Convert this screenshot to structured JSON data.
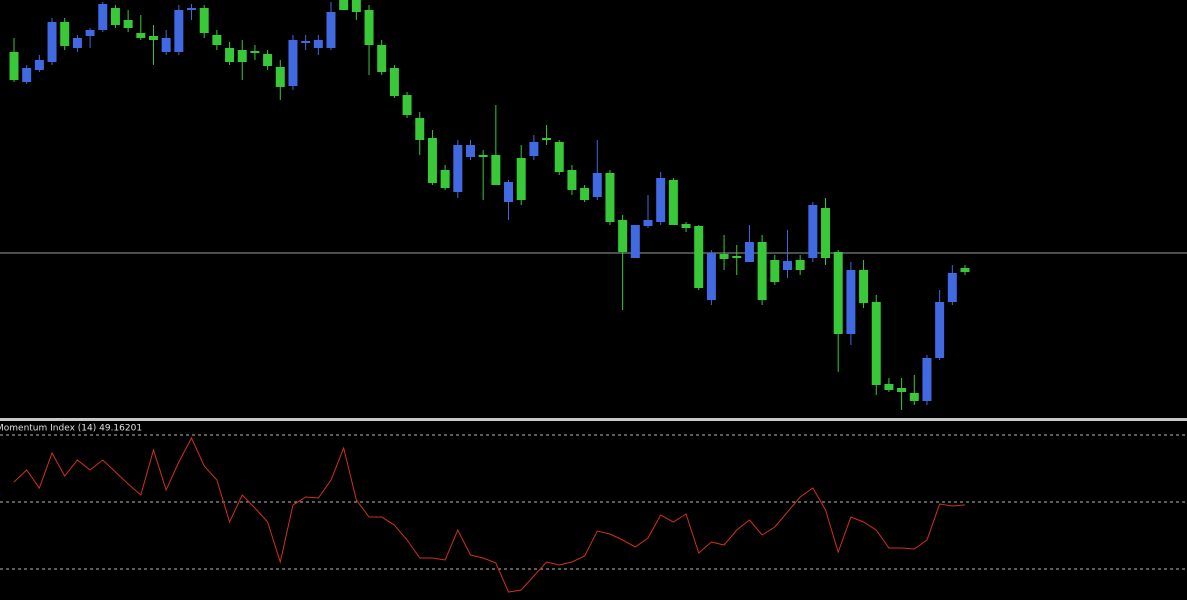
{
  "chart_data": [
    {
      "type": "candlestick",
      "up_color": "#4169e1",
      "down_color": "#38c838",
      "ylim": [
        0,
        420
      ],
      "hline": 167,
      "hline_color": "#8fa0a0",
      "open": [
        368,
        338,
        350,
        358,
        398,
        372,
        384,
        390,
        412,
        400,
        387,
        384,
        368,
        368,
        410,
        412,
        385,
        372,
        370,
        369,
        366,
        353,
        334,
        377,
        372,
        372,
        420,
        420,
        410,
        375,
        352,
        325,
        302,
        282,
        250,
        228,
        263,
        265,
        265,
        218,
        262,
        264,
        282,
        278,
        250,
        232,
        223,
        247,
        200,
        162,
        194,
        198,
        240,
        196,
        194,
        120,
        166,
        164,
        158,
        178,
        160,
        150,
        160,
        162,
        212,
        168,
        86,
        150,
        118,
        36,
        32,
        27,
        19,
        62,
        118,
        152
      ],
      "high": [
        382,
        355,
        365,
        402,
        402,
        385,
        392,
        418,
        415,
        410,
        405,
        395,
        390,
        415,
        416,
        415,
        390,
        378,
        380,
        375,
        370,
        360,
        385,
        385,
        385,
        418,
        420,
        420,
        415,
        380,
        355,
        328,
        308,
        290,
        255,
        280,
        280,
        270,
        315,
        240,
        275,
        285,
        295,
        280,
        255,
        235,
        280,
        250,
        205,
        195,
        225,
        248,
        242,
        198,
        195,
        170,
        185,
        175,
        195,
        185,
        165,
        190,
        165,
        218,
        222,
        170,
        158,
        160,
        125,
        42,
        42,
        45,
        65,
        130,
        155,
        155
      ],
      "low": [
        338,
        336,
        348,
        355,
        370,
        368,
        372,
        388,
        392,
        388,
        380,
        355,
        365,
        365,
        400,
        382,
        370,
        355,
        340,
        360,
        350,
        320,
        330,
        370,
        365,
        370,
        410,
        400,
        345,
        345,
        322,
        302,
        265,
        235,
        230,
        222,
        260,
        220,
        235,
        200,
        215,
        260,
        275,
        245,
        225,
        218,
        220,
        195,
        110,
        162,
        192,
        195,
        195,
        188,
        130,
        115,
        150,
        145,
        158,
        115,
        135,
        142,
        145,
        158,
        155,
        48,
        75,
        112,
        25,
        28,
        10,
        15,
        15,
        60,
        115,
        145
      ],
      "close": [
        340,
        352,
        360,
        398,
        374,
        382,
        390,
        416,
        395,
        392,
        382,
        380,
        382,
        410,
        412,
        387,
        375,
        358,
        358,
        367,
        354,
        333,
        380,
        379,
        380,
        408,
        410,
        408,
        375,
        348,
        324,
        305,
        280,
        237,
        232,
        275,
        275,
        263,
        235,
        238,
        220,
        278,
        280,
        248,
        230,
        220,
        247,
        198,
        168,
        195,
        200,
        242,
        195,
        192,
        132,
        167,
        161,
        162,
        178,
        120,
        138,
        159,
        150,
        215,
        162,
        86,
        150,
        117,
        35,
        30,
        28,
        19,
        62,
        118,
        147,
        148
      ]
    },
    {
      "type": "line",
      "title": "Momentum Index (14) 49.16201",
      "color": "#d0301e",
      "ylim": [
        20.75,
        74.48
      ],
      "levels": [
        30,
        50,
        70
      ],
      "level_color": "#b8b8b8",
      "values": [
        55.97,
        59.55,
        54.18,
        64.63,
        57.76,
        62.54,
        59.55,
        62.54,
        58.96,
        55.37,
        52.09,
        65.52,
        53.58,
        61.94,
        69.1,
        60.75,
        56.57,
        44.03,
        52.09,
        48.21,
        44.03,
        32.09,
        49.1,
        51.49,
        51.19,
        56.57,
        66.12,
        50.6,
        45.52,
        45.52,
        43.13,
        38.66,
        33.28,
        33.28,
        32.69,
        41.64,
        34.18,
        33.28,
        31.79,
        23.13,
        23.73,
        27.91,
        32.09,
        31.19,
        32.09,
        33.88,
        41.34,
        40.45,
        38.66,
        36.57,
        39.25,
        46.12,
        44.03,
        46.42,
        34.78,
        38.06,
        37.16,
        41.64,
        44.63,
        40.15,
        42.54,
        47.01,
        51.49,
        54.18,
        47.61,
        35.07,
        45.52,
        44.03,
        41.64,
        36.27,
        36.27,
        35.97,
        38.66,
        49.4,
        48.81,
        49.16201
      ]
    }
  ]
}
